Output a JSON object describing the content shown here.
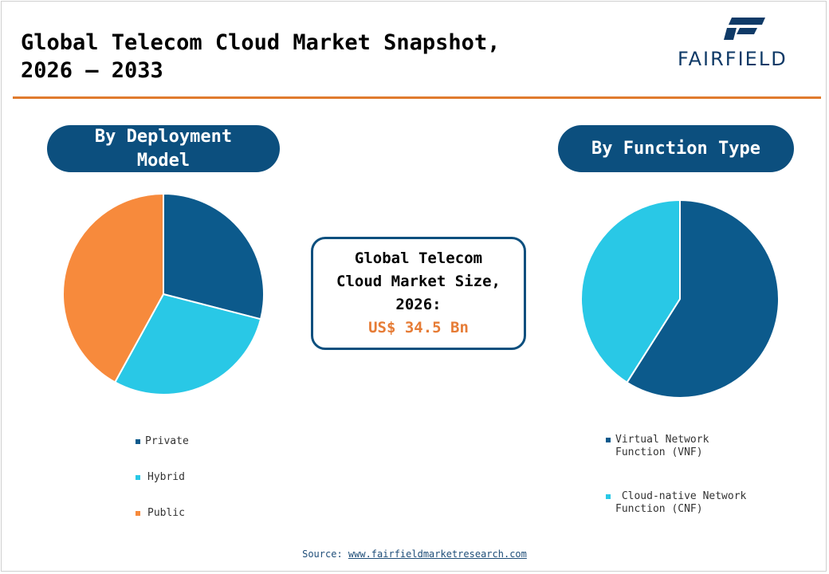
{
  "header": {
    "title_line1": "Global Telecom Cloud Market Snapshot,",
    "title_line2": "2026 – 2033",
    "logo_text": "FAIRFIELD"
  },
  "left_panel": {
    "heading_line1": "By Deployment",
    "heading_line2": "Model"
  },
  "right_panel": {
    "heading": "By Function Type"
  },
  "center_box": {
    "line1": "Global Telecom",
    "line2": "Cloud Market Size,",
    "line3": "2026:",
    "value": "US$ 34.5 Bn"
  },
  "footer": {
    "source_label": "Source: ",
    "source_link": "www.fairfieldmarketresearch.com"
  },
  "colors": {
    "dark_blue": "#0c5a8c",
    "light_blue": "#29c8e6",
    "orange": "#f78a3c",
    "accent_rule": "#e07b2e"
  },
  "chart_data": [
    {
      "type": "pie",
      "title": "By Deployment Model",
      "categories": [
        "Private",
        "Hybrid",
        "Public"
      ],
      "values": [
        29,
        29,
        42
      ],
      "colors": [
        "#0c5a8c",
        "#29c8e6",
        "#f78a3c"
      ],
      "legend_labels": [
        "Private",
        "Hybrid",
        "Public"
      ],
      "legend_position": "bottom"
    },
    {
      "type": "pie",
      "title": "By Function Type",
      "categories": [
        "Virtual Network Function (VNF)",
        "Cloud-native Network Function (CNF)"
      ],
      "values": [
        59,
        41
      ],
      "colors": [
        "#0c5a8c",
        "#29c8e6"
      ],
      "legend_labels": [
        [
          "Virtual Network",
          "Function (VNF)"
        ],
        [
          " Cloud-native Network",
          "Function (CNF)"
        ]
      ],
      "legend_position": "bottom"
    }
  ]
}
